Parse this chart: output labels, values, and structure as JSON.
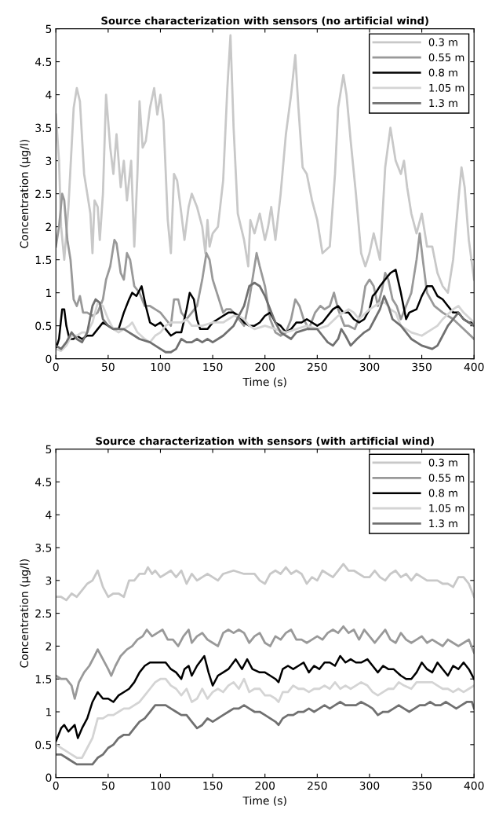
{
  "chart_data": [
    {
      "type": "line",
      "title": "Source characterization with sensors (no artificial wind)",
      "xlabel": "Time (s)",
      "ylabel": "Concentration (μg/l)",
      "xlim": [
        0,
        400
      ],
      "ylim": [
        0,
        5
      ],
      "xticks": [
        0,
        50,
        100,
        150,
        200,
        250,
        300,
        350,
        400
      ],
      "yticks": [
        0,
        0.5,
        1,
        1.5,
        2,
        2.5,
        3,
        3.5,
        4,
        4.5,
        5
      ],
      "legend": "top right",
      "series": [
        {
          "name": "0.3 m",
          "color": "#c8c8c8",
          "x": [
            0,
            3,
            5,
            8,
            12,
            17,
            20,
            23,
            27,
            30,
            33,
            35,
            37,
            40,
            42,
            45,
            48,
            52,
            55,
            58,
            62,
            65,
            68,
            72,
            75,
            78,
            80,
            83,
            86,
            90,
            94,
            97,
            100,
            103,
            107,
            110,
            113,
            116,
            120,
            123,
            127,
            130,
            135,
            140,
            143,
            145,
            147,
            150,
            155,
            160,
            164,
            167,
            170,
            174,
            180,
            184,
            186,
            190,
            195,
            200,
            203,
            206,
            210,
            215,
            220,
            225,
            229,
            232,
            236,
            240,
            245,
            250,
            255,
            262,
            267,
            270,
            275,
            278,
            282,
            287,
            292,
            296,
            300,
            304,
            310,
            315,
            320,
            325,
            330,
            333,
            336,
            340,
            345,
            350,
            355,
            360,
            365,
            370,
            375,
            380,
            385,
            388,
            391,
            395,
            400
          ],
          "values": [
            3.7,
            3.0,
            2.0,
            1.5,
            2.3,
            3.8,
            4.1,
            3.9,
            2.8,
            2.5,
            2.2,
            1.6,
            2.4,
            2.3,
            1.8,
            2.5,
            4.0,
            3.2,
            2.8,
            3.4,
            2.6,
            3.0,
            2.4,
            3.0,
            1.7,
            2.8,
            3.9,
            3.2,
            3.3,
            3.8,
            4.1,
            3.7,
            4.0,
            3.6,
            2.1,
            1.6,
            2.8,
            2.7,
            2.2,
            1.8,
            2.3,
            2.5,
            2.3,
            2.0,
            1.6,
            2.1,
            1.7,
            1.9,
            2.0,
            2.7,
            4.1,
            4.9,
            3.5,
            2.2,
            1.8,
            1.4,
            2.1,
            1.9,
            2.2,
            1.8,
            2.0,
            2.3,
            1.8,
            2.5,
            3.4,
            4.0,
            4.6,
            3.8,
            2.9,
            2.8,
            2.4,
            2.1,
            1.6,
            1.7,
            2.8,
            3.8,
            4.3,
            4.0,
            3.3,
            2.5,
            1.6,
            1.4,
            1.6,
            1.9,
            1.5,
            2.9,
            3.5,
            3.0,
            2.8,
            3.0,
            2.6,
            2.2,
            1.9,
            2.2,
            1.7,
            1.7,
            1.3,
            1.1,
            1.0,
            1.5,
            2.4,
            2.9,
            2.6,
            1.8,
            1.2
          ]
        },
        {
          "name": "0.55 m",
          "color": "#999999",
          "x": [
            0,
            3,
            6,
            8,
            11,
            14,
            17,
            20,
            23,
            26,
            30,
            35,
            40,
            45,
            48,
            52,
            56,
            58,
            62,
            65,
            68,
            71,
            75,
            80,
            85,
            90,
            95,
            100,
            105,
            110,
            113,
            117,
            120,
            125,
            130,
            135,
            140,
            144,
            147,
            150,
            155,
            160,
            163,
            167,
            170,
            175,
            180,
            185,
            188,
            192,
            195,
            200,
            205,
            210,
            215,
            220,
            225,
            229,
            233,
            237,
            242,
            248,
            253,
            257,
            262,
            266,
            270,
            276,
            280,
            286,
            292,
            296,
            300,
            304,
            308,
            312,
            315,
            318,
            322,
            326,
            330,
            335,
            340,
            345,
            348,
            351,
            355,
            362,
            370,
            380,
            390,
            400
          ],
          "values": [
            1.7,
            2.0,
            2.5,
            2.4,
            1.8,
            1.5,
            0.9,
            0.8,
            0.95,
            0.7,
            0.7,
            0.65,
            0.7,
            0.9,
            1.2,
            1.4,
            1.8,
            1.75,
            1.3,
            1.2,
            1.6,
            1.5,
            1.1,
            1.0,
            0.8,
            0.8,
            0.75,
            0.7,
            0.6,
            0.5,
            0.9,
            0.9,
            0.7,
            0.6,
            0.7,
            0.8,
            1.2,
            1.6,
            1.5,
            1.2,
            0.95,
            0.7,
            0.75,
            0.75,
            0.7,
            0.6,
            0.5,
            0.9,
            1.2,
            1.6,
            1.4,
            1.1,
            0.6,
            0.4,
            0.35,
            0.4,
            0.6,
            0.9,
            0.8,
            0.6,
            0.45,
            0.7,
            0.8,
            0.75,
            0.8,
            1.0,
            0.75,
            0.5,
            0.5,
            0.45,
            0.7,
            1.1,
            1.2,
            1.1,
            0.8,
            1.05,
            1.3,
            1.2,
            0.9,
            0.8,
            0.6,
            0.8,
            1.0,
            1.5,
            1.9,
            1.5,
            1.0,
            0.8,
            0.7,
            0.6,
            0.45,
            0.3
          ]
        },
        {
          "name": "0.8 m",
          "color": "#000000",
          "x": [
            0,
            3,
            6,
            8,
            10,
            13,
            17,
            20,
            25,
            30,
            35,
            40,
            45,
            50,
            55,
            60,
            65,
            70,
            73,
            77,
            82,
            86,
            90,
            95,
            100,
            105,
            110,
            115,
            120,
            125,
            128,
            132,
            135,
            138,
            145,
            150,
            160,
            165,
            170,
            175,
            180,
            185,
            190,
            195,
            200,
            205,
            210,
            215,
            220,
            225,
            230,
            235,
            240,
            245,
            250,
            255,
            260,
            265,
            270,
            275,
            280,
            285,
            290,
            295,
            300,
            303,
            306,
            310,
            315,
            320,
            325,
            330,
            335,
            338,
            345,
            350,
            355,
            360,
            365,
            370,
            375,
            380,
            385,
            390,
            395,
            400
          ],
          "values": [
            0.15,
            0.3,
            0.75,
            0.75,
            0.5,
            0.3,
            0.3,
            0.35,
            0.3,
            0.35,
            0.35,
            0.45,
            0.55,
            0.5,
            0.45,
            0.45,
            0.7,
            0.9,
            1.0,
            0.95,
            1.1,
            0.8,
            0.55,
            0.5,
            0.55,
            0.45,
            0.35,
            0.4,
            0.4,
            0.75,
            1.0,
            0.9,
            0.6,
            0.45,
            0.45,
            0.55,
            0.65,
            0.7,
            0.7,
            0.65,
            0.55,
            0.5,
            0.5,
            0.55,
            0.65,
            0.7,
            0.55,
            0.5,
            0.4,
            0.45,
            0.55,
            0.55,
            0.6,
            0.55,
            0.5,
            0.55,
            0.65,
            0.75,
            0.8,
            0.7,
            0.7,
            0.6,
            0.55,
            0.6,
            0.75,
            0.95,
            1.0,
            1.1,
            1.2,
            1.3,
            1.35,
            1.0,
            0.6,
            0.7,
            0.75,
            0.95,
            1.1,
            1.1,
            0.95,
            0.9,
            0.8,
            0.7,
            0.7,
            0.6,
            0.55,
            0.55
          ]
        },
        {
          "name": "1.05 m",
          "color": "#d4d4d4",
          "x": [
            0,
            5,
            10,
            15,
            20,
            25,
            30,
            35,
            40,
            45,
            50,
            55,
            60,
            65,
            70,
            73,
            78,
            85,
            90,
            95,
            100,
            105,
            110,
            115,
            120,
            125,
            130,
            140,
            150,
            160,
            170,
            175,
            180,
            185,
            190,
            200,
            210,
            220,
            230,
            240,
            250,
            260,
            270,
            280,
            285,
            290,
            300,
            305,
            310,
            315,
            320,
            325,
            330,
            340,
            350,
            360,
            365,
            370,
            380,
            385,
            390,
            400
          ],
          "values": [
            0.15,
            0.12,
            0.2,
            0.35,
            0.35,
            0.4,
            0.4,
            0.55,
            0.85,
            0.8,
            0.6,
            0.45,
            0.4,
            0.45,
            0.5,
            0.55,
            0.4,
            0.3,
            0.25,
            0.35,
            0.4,
            0.5,
            0.55,
            0.55,
            0.55,
            0.6,
            0.5,
            0.5,
            0.55,
            0.55,
            0.65,
            0.65,
            0.6,
            0.5,
            0.45,
            0.5,
            0.45,
            0.4,
            0.45,
            0.5,
            0.45,
            0.5,
            0.65,
            0.75,
            0.7,
            0.6,
            0.75,
            0.8,
            0.85,
            0.85,
            0.75,
            0.7,
            0.5,
            0.4,
            0.35,
            0.45,
            0.5,
            0.6,
            0.75,
            0.8,
            0.7,
            0.55
          ]
        },
        {
          "name": "1.3 m",
          "color": "#707070",
          "x": [
            0,
            5,
            10,
            15,
            20,
            25,
            30,
            35,
            38,
            42,
            45,
            50,
            55,
            60,
            65,
            70,
            75,
            80,
            90,
            100,
            105,
            110,
            115,
            120,
            125,
            130,
            135,
            140,
            145,
            150,
            155,
            160,
            170,
            180,
            185,
            190,
            195,
            200,
            205,
            210,
            215,
            220,
            225,
            230,
            240,
            250,
            255,
            260,
            265,
            270,
            273,
            277,
            282,
            288,
            295,
            300,
            305,
            310,
            314,
            318,
            322,
            330,
            340,
            350,
            360,
            365,
            370,
            375,
            380,
            385,
            390,
            395,
            400
          ],
          "values": [
            0.2,
            0.15,
            0.25,
            0.4,
            0.3,
            0.25,
            0.4,
            0.8,
            0.9,
            0.85,
            0.6,
            0.5,
            0.45,
            0.45,
            0.45,
            0.4,
            0.35,
            0.3,
            0.25,
            0.15,
            0.1,
            0.1,
            0.15,
            0.3,
            0.25,
            0.25,
            0.3,
            0.25,
            0.3,
            0.25,
            0.3,
            0.35,
            0.5,
            0.8,
            1.1,
            1.15,
            1.1,
            0.95,
            0.75,
            0.55,
            0.4,
            0.35,
            0.3,
            0.4,
            0.45,
            0.45,
            0.35,
            0.25,
            0.2,
            0.3,
            0.45,
            0.35,
            0.2,
            0.3,
            0.4,
            0.45,
            0.6,
            0.75,
            0.95,
            0.8,
            0.6,
            0.5,
            0.3,
            0.2,
            0.15,
            0.2,
            0.35,
            0.5,
            0.6,
            0.7,
            0.6,
            0.55,
            0.5
          ]
        }
      ]
    },
    {
      "type": "line",
      "title": "Source characterization with sensors (with artificial wind)",
      "xlabel": "Time (s)",
      "ylabel": "Concentration (μg/l)",
      "xlim": [
        0,
        400
      ],
      "ylim": [
        0,
        5
      ],
      "xticks": [
        0,
        50,
        100,
        150,
        200,
        250,
        300,
        350,
        400
      ],
      "yticks": [
        0,
        0.5,
        1,
        1.5,
        2,
        2.5,
        3,
        3.5,
        4,
        4.5,
        5
      ],
      "legend": "top right",
      "series": [
        {
          "name": "0.3 m",
          "color": "#c8c8c8",
          "x": [
            0,
            5,
            10,
            15,
            20,
            25,
            30,
            35,
            40,
            45,
            50,
            55,
            60,
            65,
            70,
            75,
            80,
            85,
            88,
            92,
            95,
            100,
            105,
            110,
            115,
            120,
            125,
            130,
            135,
            140,
            145,
            150,
            155,
            160,
            170,
            180,
            190,
            195,
            200,
            205,
            210,
            215,
            220,
            225,
            230,
            235,
            240,
            245,
            250,
            255,
            260,
            265,
            270,
            275,
            280,
            285,
            290,
            295,
            300,
            305,
            310,
            315,
            320,
            325,
            330,
            335,
            340,
            345,
            350,
            355,
            360,
            365,
            370,
            375,
            380,
            385,
            390,
            395,
            400
          ],
          "values": [
            2.75,
            2.75,
            2.7,
            2.8,
            2.75,
            2.85,
            2.95,
            3.0,
            3.15,
            2.9,
            2.75,
            2.8,
            2.8,
            2.75,
            3.0,
            3.0,
            3.1,
            3.1,
            3.2,
            3.1,
            3.15,
            3.05,
            3.1,
            3.15,
            3.05,
            3.15,
            2.95,
            3.1,
            3.0,
            3.05,
            3.1,
            3.05,
            3.0,
            3.1,
            3.15,
            3.1,
            3.1,
            3.0,
            2.95,
            3.1,
            3.15,
            3.1,
            3.2,
            3.1,
            3.15,
            3.1,
            2.95,
            3.05,
            3.0,
            3.15,
            3.1,
            3.05,
            3.15,
            3.25,
            3.15,
            3.15,
            3.1,
            3.05,
            3.05,
            3.15,
            3.05,
            3.0,
            3.1,
            3.15,
            3.05,
            3.1,
            3.0,
            3.1,
            3.05,
            3.0,
            3.0,
            3.0,
            2.95,
            2.95,
            2.9,
            3.05,
            3.05,
            2.95,
            2.75
          ]
        },
        {
          "name": "0.55 m",
          "color": "#999999",
          "x": [
            0,
            5,
            10,
            15,
            18,
            22,
            27,
            32,
            37,
            40,
            45,
            50,
            53,
            57,
            62,
            68,
            73,
            78,
            83,
            87,
            92,
            97,
            102,
            107,
            112,
            117,
            122,
            127,
            130,
            135,
            140,
            145,
            150,
            155,
            160,
            165,
            170,
            175,
            180,
            185,
            190,
            195,
            200,
            205,
            210,
            215,
            220,
            225,
            230,
            235,
            240,
            245,
            250,
            255,
            260,
            265,
            270,
            275,
            280,
            285,
            290,
            295,
            300,
            305,
            310,
            315,
            320,
            325,
            330,
            335,
            340,
            345,
            350,
            355,
            360,
            365,
            370,
            375,
            380,
            385,
            390,
            395,
            400
          ],
          "values": [
            1.55,
            1.5,
            1.5,
            1.4,
            1.2,
            1.45,
            1.6,
            1.7,
            1.85,
            1.95,
            1.8,
            1.65,
            1.55,
            1.7,
            1.85,
            1.95,
            2.0,
            2.1,
            2.15,
            2.25,
            2.15,
            2.2,
            2.25,
            2.1,
            2.1,
            2.0,
            2.15,
            2.25,
            2.05,
            2.15,
            2.2,
            2.1,
            2.05,
            2.0,
            2.2,
            2.25,
            2.2,
            2.25,
            2.2,
            2.05,
            2.15,
            2.2,
            2.05,
            2.0,
            2.15,
            2.1,
            2.2,
            2.25,
            2.1,
            2.1,
            2.05,
            2.1,
            2.15,
            2.1,
            2.2,
            2.25,
            2.2,
            2.3,
            2.2,
            2.25,
            2.1,
            2.25,
            2.15,
            2.05,
            2.15,
            2.25,
            2.1,
            2.05,
            2.2,
            2.1,
            2.05,
            2.1,
            2.15,
            2.05,
            2.1,
            2.05,
            2.0,
            2.1,
            2.05,
            2.0,
            2.05,
            2.1,
            1.9
          ]
        },
        {
          "name": "0.8 m",
          "color": "#000000",
          "x": [
            0,
            5,
            8,
            12,
            15,
            18,
            21,
            25,
            30,
            35,
            40,
            45,
            50,
            55,
            60,
            65,
            70,
            75,
            80,
            85,
            90,
            95,
            100,
            105,
            110,
            115,
            120,
            123,
            127,
            130,
            135,
            142,
            146,
            150,
            155,
            160,
            165,
            172,
            178,
            183,
            188,
            195,
            200,
            205,
            210,
            213,
            217,
            222,
            227,
            232,
            237,
            242,
            247,
            252,
            257,
            262,
            267,
            272,
            277,
            282,
            287,
            292,
            298,
            303,
            308,
            313,
            318,
            323,
            330,
            335,
            340,
            345,
            350,
            355,
            360,
            365,
            370,
            375,
            380,
            385,
            390,
            395,
            400
          ],
          "values": [
            0.55,
            0.75,
            0.8,
            0.7,
            0.75,
            0.8,
            0.6,
            0.75,
            0.9,
            1.15,
            1.3,
            1.2,
            1.2,
            1.15,
            1.25,
            1.3,
            1.35,
            1.45,
            1.6,
            1.7,
            1.75,
            1.75,
            1.75,
            1.75,
            1.65,
            1.6,
            1.5,
            1.65,
            1.7,
            1.55,
            1.7,
            1.85,
            1.6,
            1.4,
            1.55,
            1.6,
            1.65,
            1.8,
            1.65,
            1.8,
            1.65,
            1.6,
            1.6,
            1.55,
            1.5,
            1.45,
            1.65,
            1.7,
            1.65,
            1.7,
            1.75,
            1.6,
            1.7,
            1.65,
            1.75,
            1.75,
            1.7,
            1.85,
            1.75,
            1.8,
            1.75,
            1.75,
            1.8,
            1.7,
            1.6,
            1.7,
            1.65,
            1.65,
            1.55,
            1.5,
            1.5,
            1.6,
            1.75,
            1.65,
            1.6,
            1.75,
            1.65,
            1.55,
            1.7,
            1.65,
            1.75,
            1.65,
            1.5
          ]
        },
        {
          "name": "1.05 m",
          "color": "#d4d4d4",
          "x": [
            0,
            5,
            10,
            15,
            20,
            25,
            30,
            35,
            40,
            45,
            50,
            55,
            60,
            65,
            70,
            75,
            80,
            85,
            90,
            95,
            100,
            105,
            110,
            115,
            120,
            125,
            130,
            135,
            140,
            145,
            150,
            155,
            160,
            165,
            170,
            175,
            180,
            185,
            190,
            195,
            200,
            205,
            210,
            213,
            217,
            222,
            227,
            232,
            237,
            242,
            247,
            252,
            257,
            262,
            267,
            272,
            277,
            282,
            287,
            292,
            298,
            303,
            308,
            313,
            318,
            323,
            328,
            333,
            340,
            345,
            350,
            355,
            360,
            365,
            370,
            375,
            380,
            385,
            390,
            395,
            400
          ],
          "values": [
            0.5,
            0.45,
            0.4,
            0.35,
            0.3,
            0.3,
            0.45,
            0.6,
            0.9,
            0.9,
            0.95,
            0.95,
            1.0,
            1.05,
            1.05,
            1.1,
            1.15,
            1.25,
            1.35,
            1.45,
            1.5,
            1.5,
            1.4,
            1.35,
            1.25,
            1.35,
            1.15,
            1.2,
            1.35,
            1.2,
            1.3,
            1.35,
            1.3,
            1.4,
            1.45,
            1.35,
            1.5,
            1.3,
            1.35,
            1.35,
            1.25,
            1.25,
            1.2,
            1.15,
            1.3,
            1.3,
            1.4,
            1.35,
            1.35,
            1.3,
            1.35,
            1.35,
            1.4,
            1.35,
            1.45,
            1.35,
            1.4,
            1.35,
            1.4,
            1.45,
            1.4,
            1.3,
            1.25,
            1.3,
            1.35,
            1.35,
            1.45,
            1.4,
            1.35,
            1.45,
            1.45,
            1.45,
            1.45,
            1.4,
            1.35,
            1.35,
            1.3,
            1.35,
            1.3,
            1.35,
            1.4
          ]
        },
        {
          "name": "1.3 m",
          "color": "#707070",
          "x": [
            0,
            5,
            10,
            15,
            20,
            25,
            30,
            35,
            40,
            45,
            50,
            55,
            60,
            65,
            70,
            75,
            80,
            85,
            90,
            95,
            100,
            105,
            110,
            115,
            120,
            125,
            130,
            135,
            140,
            145,
            150,
            155,
            160,
            165,
            170,
            175,
            180,
            185,
            190,
            195,
            200,
            205,
            210,
            213,
            217,
            222,
            227,
            232,
            237,
            242,
            247,
            252,
            257,
            262,
            267,
            272,
            277,
            282,
            287,
            292,
            298,
            303,
            308,
            313,
            318,
            323,
            328,
            333,
            338,
            343,
            348,
            353,
            358,
            363,
            368,
            373,
            378,
            383,
            388,
            393,
            398,
            400
          ],
          "values": [
            0.35,
            0.35,
            0.3,
            0.25,
            0.2,
            0.2,
            0.2,
            0.2,
            0.3,
            0.35,
            0.45,
            0.5,
            0.6,
            0.65,
            0.65,
            0.75,
            0.85,
            0.9,
            1.0,
            1.1,
            1.1,
            1.1,
            1.05,
            1.0,
            0.95,
            0.95,
            0.85,
            0.75,
            0.8,
            0.9,
            0.85,
            0.9,
            0.95,
            1.0,
            1.05,
            1.05,
            1.1,
            1.05,
            1.0,
            1.0,
            0.95,
            0.9,
            0.85,
            0.8,
            0.9,
            0.95,
            0.95,
            1.0,
            1.0,
            1.05,
            1.0,
            1.05,
            1.1,
            1.05,
            1.1,
            1.15,
            1.1,
            1.1,
            1.1,
            1.15,
            1.1,
            1.05,
            0.95,
            1.0,
            1.0,
            1.05,
            1.1,
            1.05,
            1.0,
            1.05,
            1.1,
            1.1,
            1.15,
            1.1,
            1.1,
            1.15,
            1.1,
            1.05,
            1.1,
            1.15,
            1.15,
            1.05
          ]
        }
      ]
    }
  ]
}
